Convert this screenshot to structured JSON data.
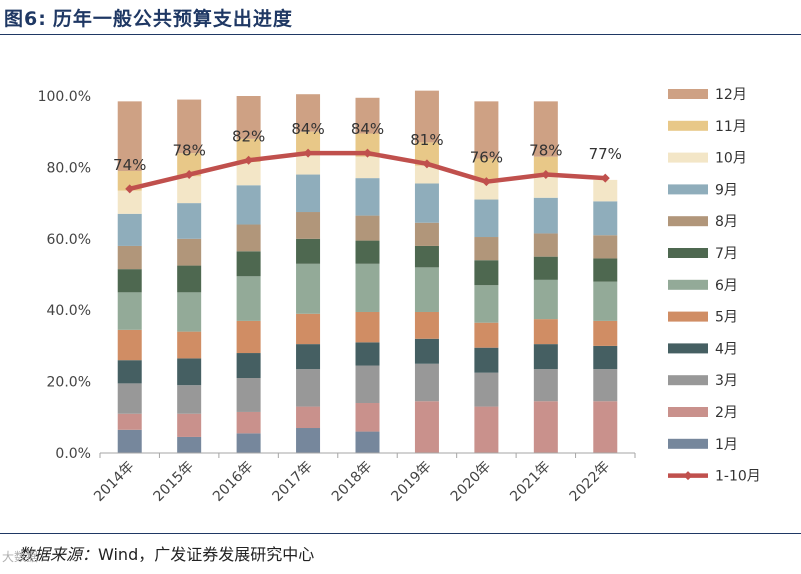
{
  "figure": {
    "title_prefix": "图6:",
    "title": "历年一般公共预算支出进度",
    "source_label": "数据来源：",
    "source_text": "Wind，广发证券发展研究中心",
    "watermark": "大数据"
  },
  "chart_data": {
    "type": "stacked-bar+line",
    "title": "历年一般公共预算支出进度",
    "categories": [
      "2014年",
      "2015年",
      "2016年",
      "2017年",
      "2018年",
      "2019年",
      "2020年",
      "2021年",
      "2022年"
    ],
    "ylim": [
      0,
      100
    ],
    "yticks": [
      "0.0%",
      "20.0%",
      "40.0%",
      "60.0%",
      "80.0%",
      "100.0%"
    ],
    "ytick_values": [
      0,
      20,
      40,
      60,
      80,
      100
    ],
    "series": [
      {
        "name": "1月",
        "color": "#76879c",
        "values": [
          6.5,
          4.5,
          5.5,
          7.0,
          6.0,
          0,
          0,
          0,
          0
        ]
      },
      {
        "name": "2月",
        "color": "#c9918c",
        "values": [
          4.5,
          6.5,
          6.0,
          6.0,
          8.0,
          14.5,
          13.0,
          14.5,
          14.5
        ]
      },
      {
        "name": "3月",
        "color": "#989898",
        "values": [
          8.5,
          8.0,
          9.5,
          10.5,
          10.5,
          10.5,
          9.5,
          9.0,
          9.0
        ]
      },
      {
        "name": "4月",
        "color": "#455f62",
        "values": [
          6.5,
          7.5,
          7.0,
          7.0,
          6.5,
          7.0,
          7.0,
          7.0,
          6.5
        ]
      },
      {
        "name": "5月",
        "color": "#d08d64",
        "values": [
          8.5,
          7.5,
          9.0,
          8.5,
          8.5,
          7.5,
          7.0,
          7.0,
          7.0
        ]
      },
      {
        "name": "6月",
        "color": "#93aa98",
        "values": [
          10.5,
          11.0,
          12.5,
          14.0,
          13.5,
          12.5,
          10.5,
          11.0,
          11.0
        ]
      },
      {
        "name": "7月",
        "color": "#4e6850",
        "values": [
          6.5,
          7.5,
          7.0,
          7.0,
          6.5,
          6.0,
          7.0,
          6.5,
          6.5
        ]
      },
      {
        "name": "8月",
        "color": "#b1967a",
        "values": [
          6.5,
          7.5,
          7.5,
          7.5,
          7.0,
          6.5,
          6.5,
          6.5,
          6.5
        ]
      },
      {
        "name": "9月",
        "color": "#8fadbb",
        "values": [
          9.0,
          10.0,
          11.0,
          10.5,
          10.5,
          11.0,
          10.5,
          10.0,
          9.5
        ]
      },
      {
        "name": "10月",
        "color": "#f3e6c7",
        "values": [
          6.5,
          7.5,
          6.5,
          6.0,
          6.0,
          5.0,
          5.5,
          6.0,
          6.0
        ]
      },
      {
        "name": "11月",
        "color": "#e8c888",
        "values": [
          5.5,
          6.5,
          6.5,
          6.0,
          6.5,
          6.5,
          6.0,
          5.5,
          0
        ]
      },
      {
        "name": "12月",
        "color": "#cea184",
        "values": [
          19.5,
          15.0,
          12.0,
          10.5,
          10.0,
          14.5,
          16.0,
          15.5,
          0
        ]
      }
    ],
    "line_series": {
      "name": "1-10月",
      "color": "#c0504d",
      "values": [
        74,
        78,
        82,
        84,
        84,
        81,
        76,
        78,
        77
      ],
      "labels": [
        "74%",
        "78%",
        "82%",
        "84%",
        "84%",
        "81%",
        "76%",
        "78%",
        "77%"
      ]
    },
    "legend_position": "right"
  }
}
